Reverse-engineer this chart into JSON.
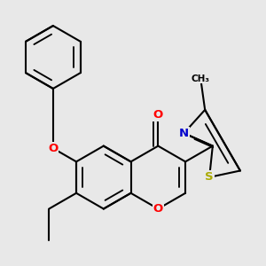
{
  "bg_color": "#e8e8e8",
  "bond_color": "#000000",
  "bond_lw": 1.5,
  "atom_colors": {
    "O": "#ff0000",
    "N": "#0000cc",
    "S": "#cccc00",
    "C": "#000000"
  },
  "font_size": 9.5,
  "scale": 1.0
}
